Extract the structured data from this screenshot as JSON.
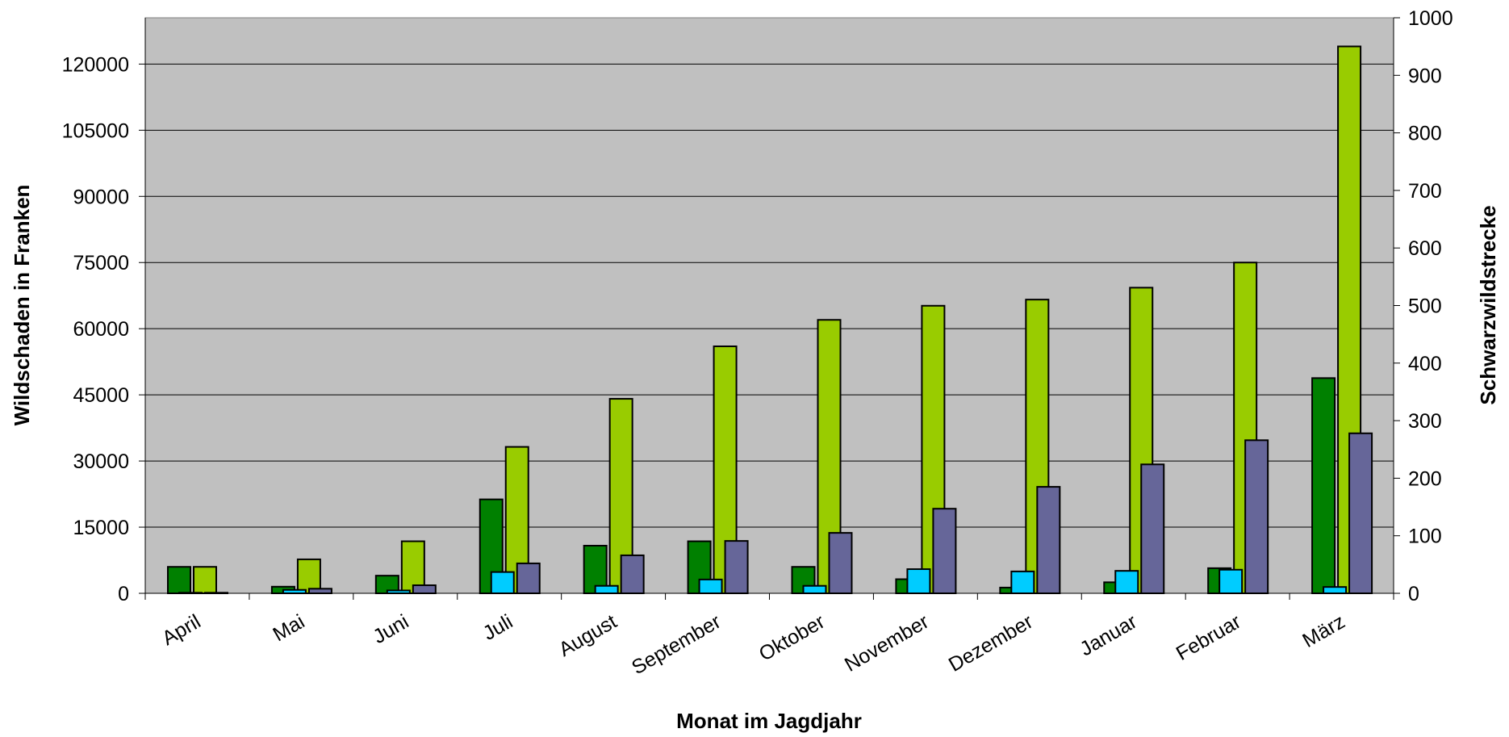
{
  "chart_data": {
    "type": "bar",
    "title": "",
    "xlabel": "Monat im Jagdjahr",
    "ylabel_left": "Wildschaden in Franken",
    "ylabel_right": "Schwarzwildstrecke",
    "categories": [
      "April",
      "Mai",
      "Juni",
      "Juli",
      "August",
      "September",
      "Oktober",
      "November",
      "Dezember",
      "Januar",
      "Februar",
      "März"
    ],
    "y_left": {
      "min": 0,
      "max": 130500,
      "ticks": [
        0,
        15000,
        30000,
        45000,
        60000,
        75000,
        90000,
        105000,
        120000
      ]
    },
    "y_right": {
      "min": 0,
      "max": 1000,
      "ticks": [
        0,
        100,
        200,
        300,
        400,
        500,
        600,
        700,
        800,
        900,
        1000
      ]
    },
    "grid": true,
    "legend": "none",
    "series": [
      {
        "axis": "left",
        "color": "#008000",
        "values": [
          6000,
          1500,
          4000,
          21300,
          10800,
          11800,
          6000,
          3200,
          1300,
          2500,
          5700,
          48800
        ]
      },
      {
        "axis": "left",
        "color": "#99cc00",
        "values": [
          6000,
          7700,
          11800,
          33200,
          44100,
          56000,
          62000,
          65200,
          66600,
          69300,
          75000,
          124000
        ]
      },
      {
        "axis": "right",
        "color": "#00ccff",
        "values": [
          1,
          6,
          5,
          37,
          13,
          24,
          13,
          42,
          38,
          39,
          41,
          11
        ]
      },
      {
        "axis": "right",
        "color": "#666699",
        "values": [
          1,
          8,
          14,
          52,
          66,
          91,
          105,
          147,
          185,
          224,
          266,
          278
        ]
      }
    ],
    "colors": {
      "plot_background": "#c0c0c0",
      "gridline": "#000000",
      "bar_outline": "#000000"
    }
  }
}
